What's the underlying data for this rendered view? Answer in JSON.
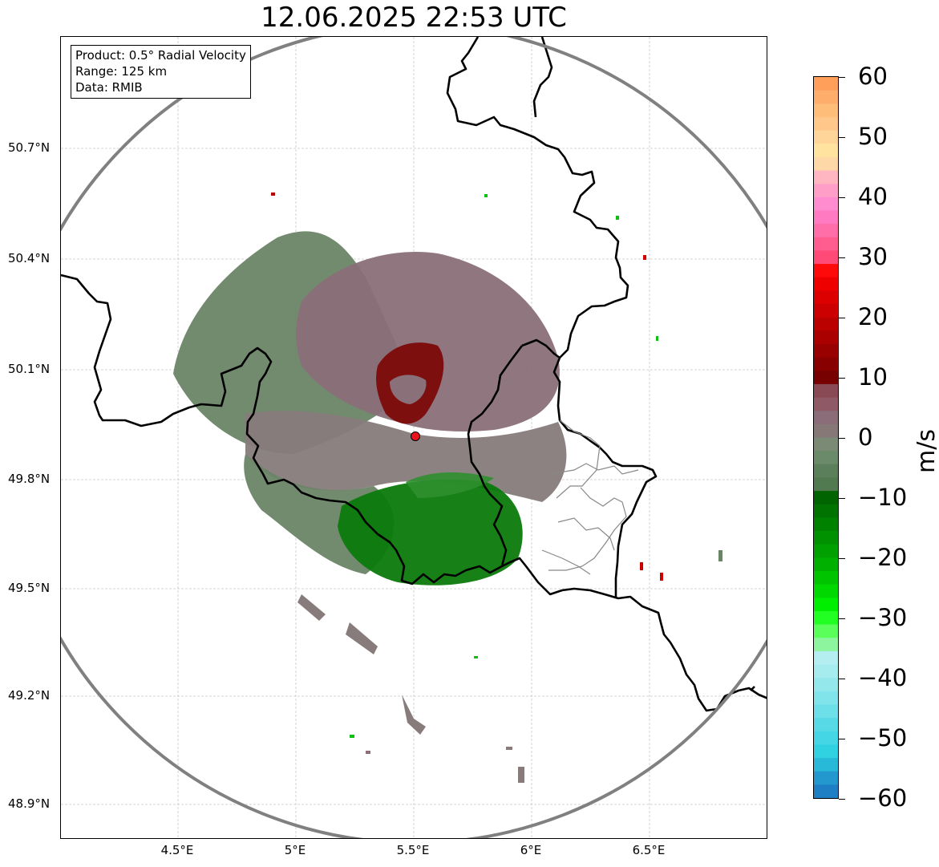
{
  "title": "12.06.2025 22:53 UTC",
  "info_box": {
    "product": "Product: 0.5° Radial Velocity",
    "range": "Range: 125 km",
    "data": "Data: RMIB"
  },
  "map": {
    "lat_labels": [
      "50.7°N",
      "50.4°N",
      "50.1°N",
      "49.8°N",
      "49.5°N",
      "49.2°N",
      "48.9°N"
    ],
    "lon_labels": [
      "4.5°E",
      "5°E",
      "5.5°E",
      "6°E",
      "6.5°E"
    ],
    "radar_site_color": "#e8141a",
    "range_ring_color": "#808080",
    "border_color": "#000000"
  },
  "colorbar": {
    "unit": "m/s",
    "ticks": [
      "60",
      "50",
      "40",
      "30",
      "20",
      "10",
      "0",
      "−10",
      "−20",
      "−30",
      "−40",
      "−50",
      "−60"
    ],
    "range": [
      -60,
      60
    ],
    "colors_top_to_bottom": [
      "#ff9f5a",
      "#ffad6a",
      "#ffbd7a",
      "#ffc88a",
      "#ffd59a",
      "#ffe39e",
      "#ffd8a8",
      "#ffb6c1",
      "#ff9fc8",
      "#ff8ccf",
      "#ff7ac0",
      "#ff6ea8",
      "#ff5c90",
      "#ff4a78",
      "#ff0a0a",
      "#ee0000",
      "#dd0000",
      "#cc0000",
      "#bb0000",
      "#aa0000",
      "#990000",
      "#880000",
      "#770000",
      "#8a4a55",
      "#8f5a66",
      "#8a6d78",
      "#877878",
      "#7a8a75",
      "#6a8a6a",
      "#5b7f5a",
      "#527a50",
      "#006400",
      "#007300",
      "#008200",
      "#009100",
      "#00a000",
      "#00b000",
      "#00c400",
      "#00d800",
      "#00ee00",
      "#22ff22",
      "#5aff5a",
      "#8cf59e",
      "#b4eef0",
      "#a6ecef",
      "#94e8ec",
      "#80e4ea",
      "#6cdfe8",
      "#58dae6",
      "#44d6e4",
      "#30d2e2",
      "#28b8d8",
      "#2298cf",
      "#1e7fc4"
    ]
  }
}
